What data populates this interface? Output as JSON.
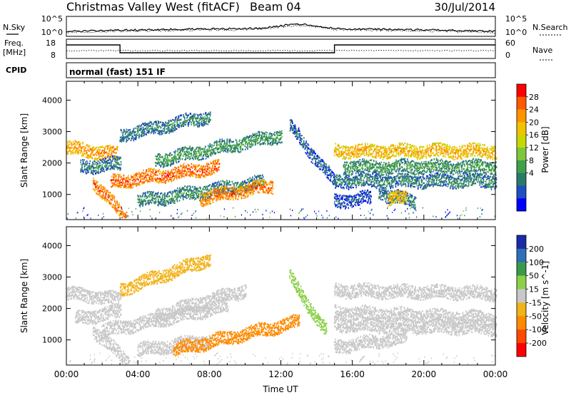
{
  "header": {
    "station": "Christmas Valley West (fitACF)",
    "beam": "Beam 04",
    "date": "30/Jul/2014"
  },
  "top_panels": {
    "nsky": {
      "left_label": "N.Sky",
      "right_label": "N.Search",
      "ticks_left": [
        "10^5",
        "10^0"
      ],
      "ticks_right": [
        "10^5",
        "10^0"
      ]
    },
    "freq": {
      "left_label_1": "Freq.",
      "left_label_2": "[MHz]",
      "right_label": "Nave",
      "ticks_left": [
        "18",
        "8"
      ],
      "ticks_right": [
        "60",
        "0"
      ],
      "high_intervals_hours": [
        [
          0,
          3
        ],
        [
          15,
          24
        ]
      ]
    },
    "cpid": {
      "label": "CPID",
      "mode_text": "normal (fast) 151 IF"
    }
  },
  "chart_data": [
    {
      "type": "heatmap",
      "name": "power",
      "ylabel": "Slant Range [km]",
      "xlim_hours": [
        0,
        24
      ],
      "ylim_km": [
        200,
        4600
      ],
      "y_ticks": [
        1000,
        2000,
        3000,
        4000
      ],
      "colorbar": {
        "label": "Power [dB]",
        "ticks": [
          "28",
          "24",
          "20",
          "16",
          "12",
          "8",
          "4"
        ],
        "colors": [
          "#ff0000",
          "#ff5a00",
          "#ff9400",
          "#f2c200",
          "#c6d800",
          "#7dc83a",
          "#3ea04a",
          "#2a7a6a",
          "#1f4fc2",
          "#0000ff"
        ]
      },
      "echo_bands": [
        {
          "hours": [
            0.0,
            2.8
          ],
          "km": [
            2500,
            2300
          ],
          "level": 24
        },
        {
          "hours": [
            0.8,
            3.0
          ],
          "km": [
            1900,
            2000
          ],
          "level": 8
        },
        {
          "hours": [
            1.5,
            3.3
          ],
          "km": [
            1400,
            300
          ],
          "level": 26
        },
        {
          "hours": [
            2.5,
            8.5
          ],
          "km": [
            1400,
            1900
          ],
          "level": 27
        },
        {
          "hours": [
            3.0,
            8.0
          ],
          "km": [
            2900,
            3500
          ],
          "level": 8
        },
        {
          "hours": [
            4.0,
            11.0
          ],
          "km": [
            800,
            1400
          ],
          "level": 9
        },
        {
          "hours": [
            7.5,
            11.5
          ],
          "km": [
            900,
            1300
          ],
          "level": 26
        },
        {
          "hours": [
            5.0,
            12.0
          ],
          "km": [
            2100,
            2900
          ],
          "level": 10
        },
        {
          "hours": [
            12.5,
            15.0
          ],
          "km": [
            3200,
            1400
          ],
          "level": 6
        },
        {
          "hours": [
            15.0,
            24.0
          ],
          "km": [
            2400,
            2400
          ],
          "level": 22
        },
        {
          "hours": [
            15.5,
            24.0
          ],
          "km": [
            1900,
            1900
          ],
          "level": 10
        },
        {
          "hours": [
            15.0,
            24.0
          ],
          "km": [
            1450,
            1450
          ],
          "level": 8
        },
        {
          "hours": [
            15.0,
            17.0
          ],
          "km": [
            800,
            900
          ],
          "level": 5
        },
        {
          "hours": [
            17.5,
            19.5
          ],
          "km": [
            1050,
            800
          ],
          "level": 8
        },
        {
          "hours": [
            18.0,
            19.0
          ],
          "km": [
            900,
            900
          ],
          "level": 22
        }
      ]
    },
    {
      "type": "heatmap",
      "name": "velocity",
      "xlabel": "Time UT",
      "ylabel": "Slant Range [km]",
      "xlim_hours": [
        0,
        24
      ],
      "ylim_km": [
        200,
        4600
      ],
      "x_ticks": [
        "00:00",
        "04:00",
        "08:00",
        "12:00",
        "16:00",
        "20:00",
        "00:00"
      ],
      "y_ticks": [
        1000,
        2000,
        3000,
        4000
      ],
      "colorbar": {
        "label": "Velocity [m s^-1]",
        "ticks": [
          "200",
          "100",
          "50",
          "15",
          "-15",
          "-50",
          "-100",
          "-200"
        ],
        "colors": [
          "#1a2aa8",
          "#2f6fb8",
          "#3a9a4a",
          "#8cd048",
          "#c8c8c8",
          "#f2b21a",
          "#ff8a00",
          "#ff4800",
          "#ff0000"
        ]
      },
      "echo_bands": [
        {
          "hours": [
            0.0,
            3.0
          ],
          "km": [
            2500,
            2300
          ],
          "level": 0
        },
        {
          "hours": [
            0.5,
            3.0
          ],
          "km": [
            1700,
            1900
          ],
          "level": 0
        },
        {
          "hours": [
            1.5,
            3.5
          ],
          "km": [
            1300,
            300
          ],
          "level": 0
        },
        {
          "hours": [
            2.0,
            9.0
          ],
          "km": [
            1300,
            2100
          ],
          "level": 0
        },
        {
          "hours": [
            3.0,
            8.0
          ],
          "km": [
            2600,
            3600
          ],
          "level": -30
        },
        {
          "hours": [
            4.0,
            8.0
          ],
          "km": [
            700,
            1000
          ],
          "level": 0
        },
        {
          "hours": [
            6.0,
            13.0
          ],
          "km": [
            700,
            1600
          ],
          "level": -60
        },
        {
          "hours": [
            5.0,
            10.0
          ],
          "km": [
            1800,
            2600
          ],
          "level": 0
        },
        {
          "hours": [
            12.5,
            14.5
          ],
          "km": [
            3000,
            1300
          ],
          "level": 40
        },
        {
          "hours": [
            15.0,
            24.0
          ],
          "km": [
            2600,
            2500
          ],
          "level": 0
        },
        {
          "hours": [
            15.0,
            24.0
          ],
          "km": [
            1900,
            1700
          ],
          "level": 0
        },
        {
          "hours": [
            15.0,
            24.0
          ],
          "km": [
            1500,
            1400
          ],
          "level": 0
        },
        {
          "hours": [
            15.0,
            19.0
          ],
          "km": [
            800,
            1100
          ],
          "level": 0
        }
      ]
    }
  ]
}
